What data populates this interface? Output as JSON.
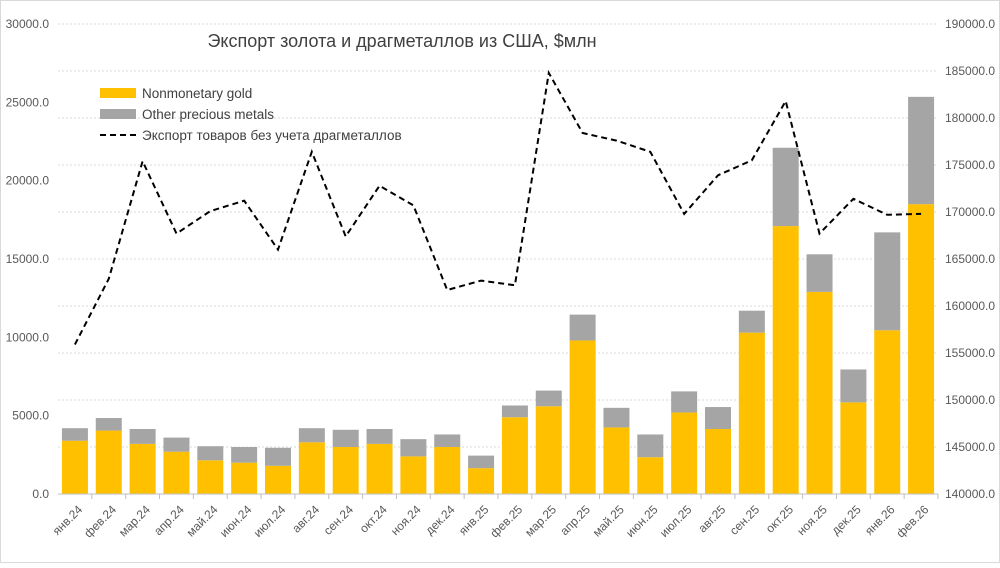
{
  "chart_data": {
    "type": "bar",
    "stacked": true,
    "title": "Экспорт золота и драгметаллов из США, $млн",
    "categories": [
      "янв.24",
      "фев.24",
      "мар.24",
      "апр.24",
      "май.24",
      "июн.24",
      "июл.24",
      "авг.24",
      "сен.24",
      "окт.24",
      "ноя.24",
      "дек.24",
      "янв.25",
      "фев.25",
      "мар.25",
      "апр.25",
      "май.25",
      "июн.25",
      "июл.25",
      "авг.25",
      "сен.25",
      "окт.25",
      "ноя.25",
      "дек.25",
      "янв.26",
      "фев.26"
    ],
    "series": [
      {
        "name": "Nonmonetary gold",
        "type": "bar",
        "axis": "left",
        "color": "#FFC000",
        "values": [
          3400,
          4050,
          3200,
          2700,
          2150,
          2000,
          1800,
          3300,
          3000,
          3200,
          2400,
          3000,
          1650,
          4900,
          5600,
          9800,
          4250,
          2350,
          5200,
          4150,
          10300,
          17100,
          12900,
          5850,
          10450,
          18500
        ]
      },
      {
        "name": "Other precious metals",
        "type": "bar",
        "axis": "left",
        "color": "#A5A5A5",
        "values": [
          800,
          800,
          950,
          900,
          900,
          1000,
          1150,
          900,
          1100,
          950,
          1100,
          800,
          800,
          750,
          1000,
          1650,
          1250,
          1450,
          1350,
          1400,
          1400,
          5000,
          2400,
          2100,
          6250,
          6850
        ]
      },
      {
        "name": "Экспорт товаров без учета драгметаллов",
        "type": "line",
        "axis": "right",
        "color": "#000000",
        "dash": "dashed",
        "values": [
          155900,
          162900,
          175400,
          167700,
          170100,
          171200,
          166000,
          176400,
          167400,
          172800,
          170700,
          161700,
          162700,
          162200,
          184800,
          178400,
          177600,
          176400,
          169800,
          173900,
          175500,
          181800,
          167700,
          171400,
          169700,
          169800
        ]
      }
    ],
    "y_left": {
      "ylim": [
        0,
        30000
      ],
      "ticks": [
        "0.0",
        "5000.0",
        "10000.0",
        "15000.0",
        "20000.0",
        "25000.0",
        "30000.0"
      ]
    },
    "y_right": {
      "ylim": [
        140000,
        190000
      ],
      "ticks": [
        "140000.0",
        "145000.0",
        "150000.0",
        "155000.0",
        "160000.0",
        "165000.0",
        "170000.0",
        "175000.0",
        "180000.0",
        "185000.0",
        "190000.0"
      ]
    },
    "grid": true,
    "legend_position": "top-left"
  }
}
